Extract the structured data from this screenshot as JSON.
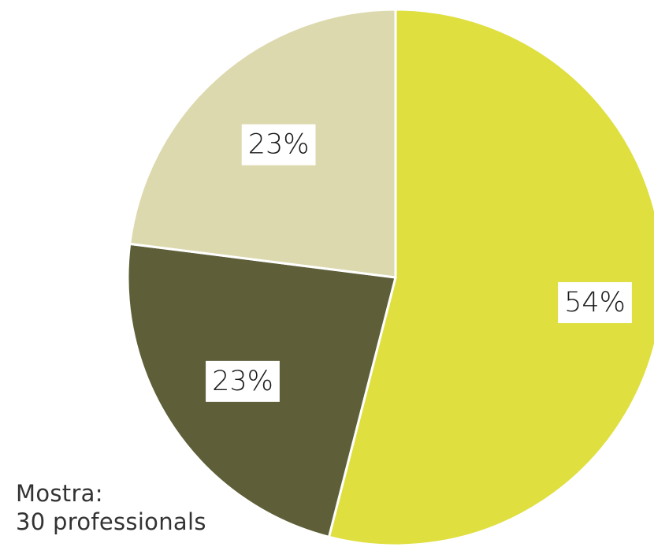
{
  "chart_data": {
    "type": "pie",
    "slices": [
      {
        "label": "54%",
        "value": 54,
        "color": "#dfdf40"
      },
      {
        "label": "23%",
        "value": 23,
        "color": "#5e5f39"
      },
      {
        "label": "23%",
        "value": 23,
        "color": "#dcd9ae"
      }
    ],
    "start_angle_deg": 0,
    "direction": "clockwise",
    "title": "",
    "legend": "none"
  },
  "note": {
    "line1": "Mostra:",
    "line2": "30 professionals"
  }
}
